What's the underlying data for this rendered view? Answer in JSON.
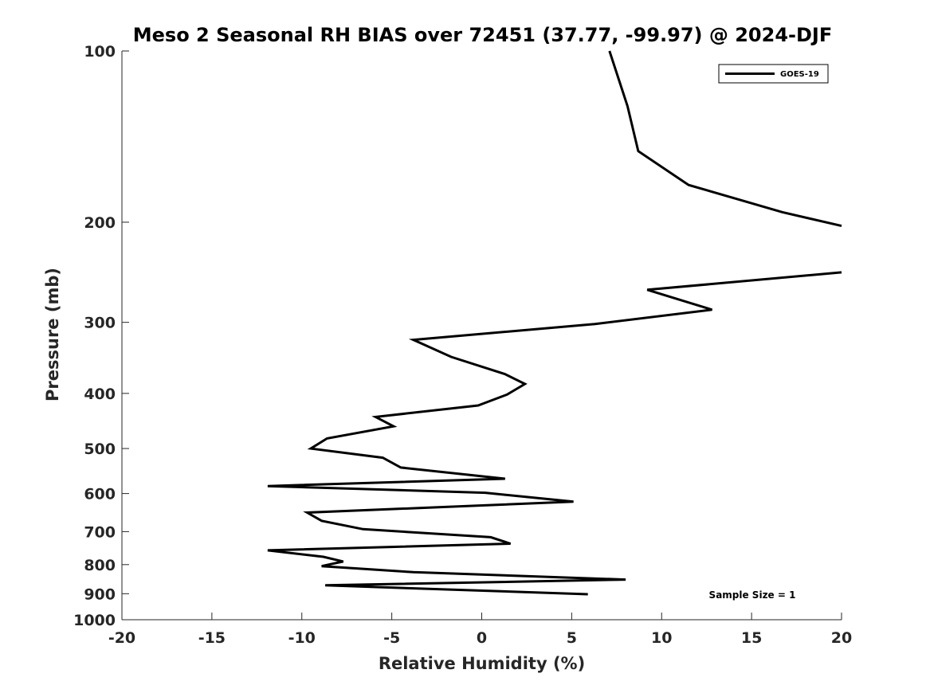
{
  "chart_data": {
    "type": "line",
    "title": "Meso 2 Seasonal RH BIAS over 72451 (37.77, -99.97) @ 2024-DJF",
    "xlabel": "Relative Humidity (%)",
    "ylabel": "Pressure (mb)",
    "xlim": [
      -20,
      20
    ],
    "ylim": [
      100,
      1000
    ],
    "y_scale": "log",
    "y_reversed": true,
    "xticks": [
      -20,
      -15,
      -10,
      -5,
      0,
      5,
      10,
      15,
      20
    ],
    "xtick_labels": [
      "-20",
      "-15",
      "-10",
      "-5",
      "0",
      "5",
      "10",
      "15",
      "20"
    ],
    "yticks": [
      100,
      200,
      300,
      400,
      500,
      600,
      700,
      800,
      900,
      1000
    ],
    "ytick_labels": [
      "100",
      "200",
      "300",
      "400",
      "500",
      "600",
      "700",
      "800",
      "900",
      "1000"
    ],
    "legend_position": "top-right",
    "annotation": "Sample Size = 1",
    "series": [
      {
        "name": "GOES-19",
        "color": "#000000",
        "segments": [
          {
            "x": [
              7.1,
              8.1,
              8.7,
              11.5,
              16.7,
              20.0
            ],
            "y": [
              100,
              125,
              150,
              172,
              192,
              203
            ]
          },
          {
            "x": [
              20.0,
              9.2,
              12.8,
              6.3,
              -3.8,
              -1.7,
              1.3,
              2.4,
              1.4,
              -0.2,
              -5.9,
              -4.9,
              -8.6,
              -9.5,
              -5.5,
              -4.5,
              1.3,
              -11.9,
              0.2,
              5.1,
              -9.7,
              -8.9,
              -6.6,
              0.5,
              1.6,
              -11.9,
              -8.8,
              -7.7,
              -8.9,
              -3.8,
              8.0,
              -8.7,
              5.9
            ],
            "y": [
              245,
              263,
              285,
              302,
              322,
              345,
              370,
              385,
              402,
              420,
              440,
              457,
              480,
              500,
              519,
              540,
              565,
              582,
              598,
              620,
              648,
              670,
              693,
              716,
              735,
              755,
              775,
              790,
              805,
              825,
              850,
              870,
              902
            ]
          }
        ]
      }
    ]
  }
}
